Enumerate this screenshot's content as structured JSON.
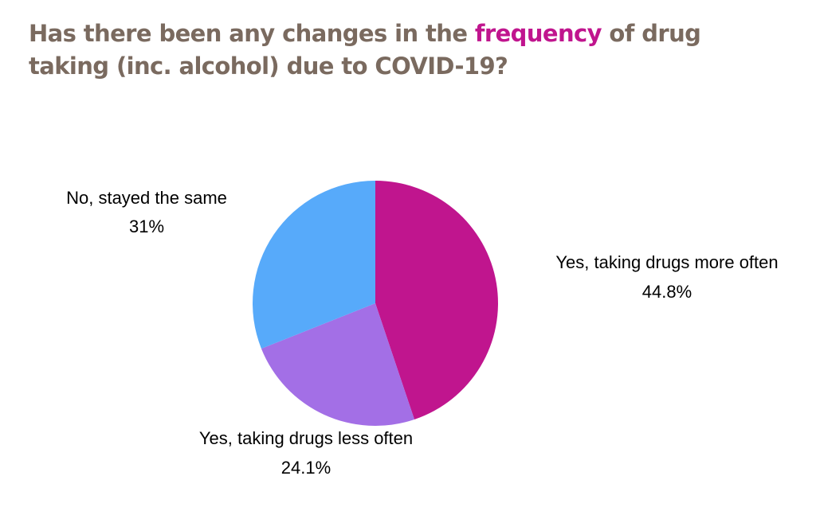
{
  "title": {
    "before": "Has there been any changes in the ",
    "highlight": "frequency",
    "after": " of drug taking (inc. alcohol) due to COVID-19?",
    "color": "#7a6a5f",
    "highlight_color": "#c0158e"
  },
  "chart_data": {
    "type": "pie",
    "title": "Has there been any changes in the frequency of drug taking (inc. alcohol) due to COVID-19?",
    "slices": [
      {
        "label": "Yes, taking drugs more often",
        "value": 44.8,
        "value_label": "44.8%",
        "color": "#c0158e"
      },
      {
        "label": "Yes, taking drugs less often",
        "value": 24.1,
        "value_label": "24.1%",
        "color": "#a36fe6"
      },
      {
        "label": "No, stayed the same",
        "value": 31,
        "value_label": "31%",
        "color": "#57aafa"
      }
    ],
    "legend": "none",
    "start_angle": "12 o'clock",
    "direction": "clockwise"
  }
}
